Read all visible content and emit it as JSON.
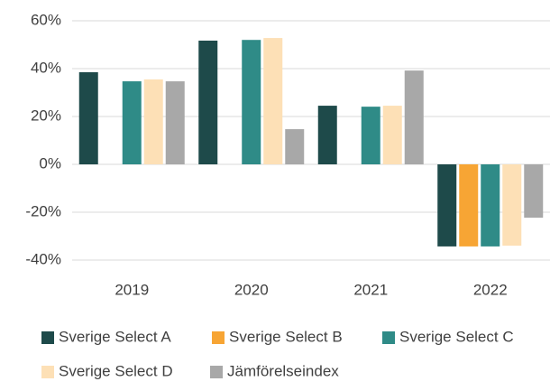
{
  "chart_data": {
    "type": "bar",
    "categories": [
      "2019",
      "2020",
      "2021",
      "2022"
    ],
    "series": [
      {
        "name": "Sverige Select A",
        "color": "#1e4a4a",
        "values": [
          38.5,
          51.7,
          24.5,
          -34.3
        ]
      },
      {
        "name": "Sverige Select B",
        "color": "#f7a534",
        "values": [
          null,
          null,
          null,
          -34.3
        ]
      },
      {
        "name": "Sverige Select C",
        "color": "#2f8b87",
        "values": [
          34.7,
          52,
          24.1,
          -34.3
        ]
      },
      {
        "name": "Sverige Select D",
        "color": "#fde0b6",
        "values": [
          35.5,
          52.8,
          24.5,
          -34
        ]
      },
      {
        "name": "Jämförelseindex",
        "color": "#a8a8a8",
        "values": [
          34.7,
          14.7,
          39.2,
          -22.3
        ]
      }
    ],
    "ylim": [
      -40,
      60
    ],
    "yticks": [
      {
        "value": -40,
        "label": "-40%"
      },
      {
        "value": -20,
        "label": "-20%"
      },
      {
        "value": 0,
        "label": "0%"
      },
      {
        "value": 20,
        "label": "20%"
      },
      {
        "value": 40,
        "label": "40%"
      },
      {
        "value": 60,
        "label": "60%"
      }
    ],
    "grid": true
  }
}
